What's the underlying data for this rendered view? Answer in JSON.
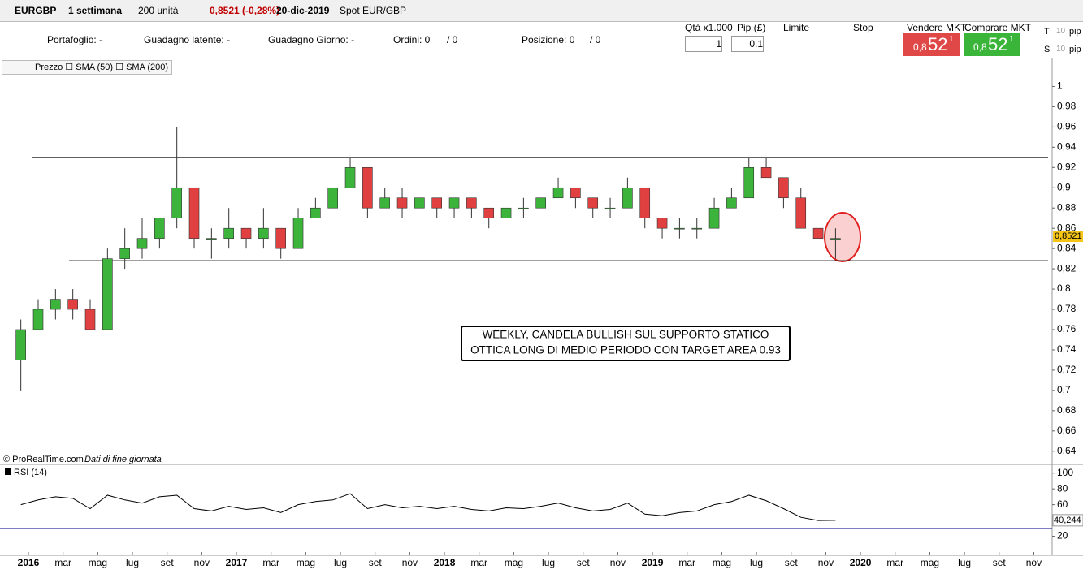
{
  "toolbar": {
    "symbol": "EURGBP",
    "period": "1 settimana",
    "units": "200 unità",
    "change": "0,8521 (-0,28%)",
    "date": "20-dic-2019",
    "instrument": "Spot EUR/GBP"
  },
  "account": {
    "portfolio": "Portafoglio: -",
    "latent": "Guadagno latente: -",
    "day": "Guadagno Giorno: -",
    "orders": "Ordini: 0",
    "orders2": "/ 0",
    "position": "Posizione: 0",
    "position2": "/ 0"
  },
  "order_panel": {
    "qty_label": "Qtà x1.000",
    "pip_label": "Pip (£)",
    "qty": "1",
    "pip": "0.1",
    "limit": "Limite",
    "stop": "Stop",
    "sell_label": "Vendere MKT",
    "buy_label": "Comprare MKT",
    "sell": [
      "0,8",
      "52",
      "1"
    ],
    "buy": [
      "0,8",
      "52",
      "1"
    ],
    "t": "T",
    "s": "S",
    "pips": "10",
    "pip_unit": "pip"
  },
  "legend": [
    "Prezzo",
    "SMA (50)",
    "SMA (200)"
  ],
  "credit": "© ProRealTime.com",
  "credit2": "Dati di fine giornata",
  "chart_data": {
    "type": "candlestick",
    "xticks": [
      "2016",
      "mar",
      "mag",
      "lug",
      "set",
      "nov",
      "2017",
      "mar",
      "mag",
      "lug",
      "set",
      "nov",
      "2018",
      "mar",
      "mag",
      "lug",
      "set",
      "nov",
      "2019",
      "mar",
      "mag",
      "lug",
      "set",
      "nov",
      "2020",
      "mar",
      "mag",
      "lug",
      "set",
      "nov"
    ],
    "ohlc": [
      [
        0.73,
        0.77,
        0.7,
        0.76
      ],
      [
        0.76,
        0.79,
        0.76,
        0.78
      ],
      [
        0.78,
        0.8,
        0.77,
        0.79
      ],
      [
        0.79,
        0.8,
        0.77,
        0.78
      ],
      [
        0.78,
        0.79,
        0.76,
        0.76
      ],
      [
        0.76,
        0.84,
        0.76,
        0.83
      ],
      [
        0.83,
        0.86,
        0.82,
        0.84
      ],
      [
        0.84,
        0.87,
        0.83,
        0.85
      ],
      [
        0.85,
        0.87,
        0.84,
        0.87
      ],
      [
        0.87,
        0.96,
        0.86,
        0.9
      ],
      [
        0.9,
        0.9,
        0.84,
        0.85
      ],
      [
        0.85,
        0.86,
        0.83,
        0.85
      ],
      [
        0.85,
        0.88,
        0.84,
        0.86
      ],
      [
        0.86,
        0.86,
        0.84,
        0.85
      ],
      [
        0.85,
        0.88,
        0.84,
        0.86
      ],
      [
        0.86,
        0.86,
        0.83,
        0.84
      ],
      [
        0.84,
        0.88,
        0.84,
        0.87
      ],
      [
        0.87,
        0.89,
        0.87,
        0.88
      ],
      [
        0.88,
        0.9,
        0.88,
        0.9
      ],
      [
        0.9,
        0.93,
        0.9,
        0.92
      ],
      [
        0.92,
        0.92,
        0.87,
        0.88
      ],
      [
        0.88,
        0.9,
        0.88,
        0.89
      ],
      [
        0.89,
        0.9,
        0.87,
        0.88
      ],
      [
        0.88,
        0.89,
        0.88,
        0.89
      ],
      [
        0.89,
        0.89,
        0.87,
        0.88
      ],
      [
        0.88,
        0.89,
        0.87,
        0.89
      ],
      [
        0.89,
        0.89,
        0.87,
        0.88
      ],
      [
        0.88,
        0.88,
        0.86,
        0.87
      ],
      [
        0.87,
        0.88,
        0.87,
        0.88
      ],
      [
        0.88,
        0.89,
        0.87,
        0.88
      ],
      [
        0.88,
        0.89,
        0.88,
        0.89
      ],
      [
        0.89,
        0.91,
        0.89,
        0.9
      ],
      [
        0.9,
        0.9,
        0.88,
        0.89
      ],
      [
        0.89,
        0.89,
        0.87,
        0.88
      ],
      [
        0.88,
        0.89,
        0.87,
        0.88
      ],
      [
        0.88,
        0.91,
        0.88,
        0.9
      ],
      [
        0.9,
        0.9,
        0.86,
        0.87
      ],
      [
        0.87,
        0.87,
        0.85,
        0.86
      ],
      [
        0.86,
        0.87,
        0.85,
        0.86
      ],
      [
        0.86,
        0.87,
        0.85,
        0.86
      ],
      [
        0.86,
        0.89,
        0.86,
        0.88
      ],
      [
        0.88,
        0.9,
        0.88,
        0.89
      ],
      [
        0.89,
        0.93,
        0.89,
        0.92
      ],
      [
        0.92,
        0.93,
        0.91,
        0.91
      ],
      [
        0.91,
        0.91,
        0.88,
        0.89
      ],
      [
        0.89,
        0.9,
        0.86,
        0.86
      ],
      [
        0.86,
        0.86,
        0.85,
        0.85
      ],
      [
        0.85,
        0.86,
        0.83,
        0.85
      ]
    ],
    "ylim": [
      0.627,
      1.026
    ],
    "yticks": [
      {
        "value": 0.64,
        "label": "0,64"
      },
      {
        "value": 0.66,
        "label": "0,66"
      },
      {
        "value": 0.68,
        "label": "0,68"
      },
      {
        "value": 0.7,
        "label": "0,7"
      },
      {
        "value": 0.72,
        "label": "0,72"
      },
      {
        "value": 0.74,
        "label": "0,74"
      },
      {
        "value": 0.76,
        "label": "0,76"
      },
      {
        "value": 0.78,
        "label": "0,78"
      },
      {
        "value": 0.8,
        "label": "0,8"
      },
      {
        "value": 0.82,
        "label": "0,82"
      },
      {
        "value": 0.84,
        "label": "0,84"
      },
      {
        "value": 0.86,
        "label": "0,86"
      },
      {
        "value": 0.88,
        "label": "0,88"
      },
      {
        "value": 0.9,
        "label": "0,9"
      },
      {
        "value": 0.92,
        "label": "0,92"
      },
      {
        "value": 0.94,
        "label": "0,94"
      },
      {
        "value": 0.96,
        "label": "0,96"
      },
      {
        "value": 0.98,
        "label": "0,98"
      },
      1
    ],
    "last": {
      "value": 0.8521,
      "label": "0,8521"
    },
    "levels": [
      0.93,
      0.828
    ],
    "annotation": [
      "WEEKLY, CANDELA BULLISH SUL SUPPORTO STATICO",
      "OTTICA LONG DI MEDIO PERIODO CON TARGET AREA 0.93"
    ],
    "rsi": {
      "name": "RSI (14)",
      "values": [
        60,
        66,
        70,
        68,
        55,
        72,
        66,
        62,
        70,
        72,
        55,
        52,
        58,
        54,
        56,
        50,
        60,
        64,
        66,
        74,
        55,
        60,
        56,
        58,
        55,
        58,
        54,
        52,
        56,
        55,
        58,
        62,
        56,
        52,
        54,
        62,
        48,
        46,
        50,
        52,
        60,
        64,
        72,
        65,
        55,
        44,
        40,
        40.244
      ],
      "last_label": "40,244",
      "ylim": [
        0,
        110
      ],
      "yticks": [
        20,
        60,
        80,
        100
      ],
      "level": 30
    }
  }
}
